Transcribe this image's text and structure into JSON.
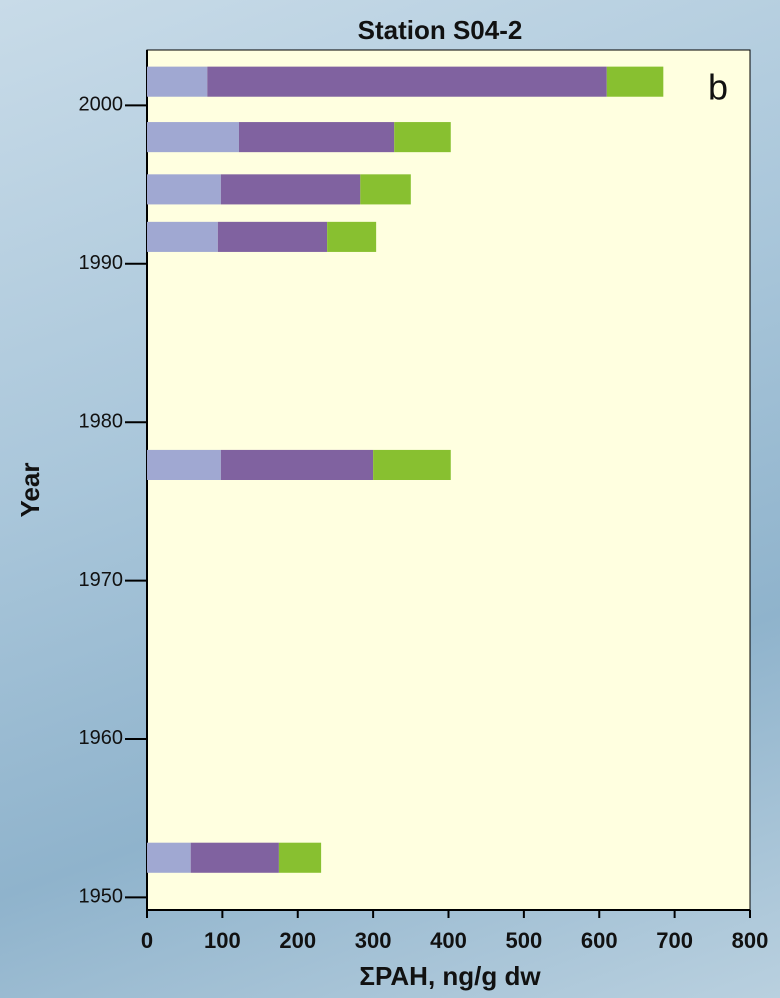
{
  "chart_data": {
    "type": "hbar-stacked",
    "title": "Station S04-2",
    "xlabel": "ΣPAH, ng/g dw",
    "ylabel": "Year",
    "annotation": "b",
    "years": [
      2001.5,
      1998,
      1994.7,
      1991.7,
      1977.3,
      1952.5
    ],
    "series": [
      {
        "color": "#a0a8d2",
        "values": [
          80,
          122,
          98,
          94,
          98,
          58
        ]
      },
      {
        "color": "#8062a0",
        "values": [
          530,
          206,
          185,
          145,
          202,
          117
        ]
      },
      {
        "color": "#88c030",
        "values": [
          75,
          75,
          67,
          65,
          103,
          56
        ]
      }
    ],
    "xlim": [
      0,
      800
    ],
    "xticks": [
      0,
      100,
      200,
      300,
      400,
      500,
      600,
      700,
      800
    ],
    "ylim": [
      1949.2,
      2003.5
    ],
    "yticks": [
      1950,
      1960,
      1970,
      1980,
      1990,
      2000
    ],
    "plot_background": "#ffffe0"
  }
}
